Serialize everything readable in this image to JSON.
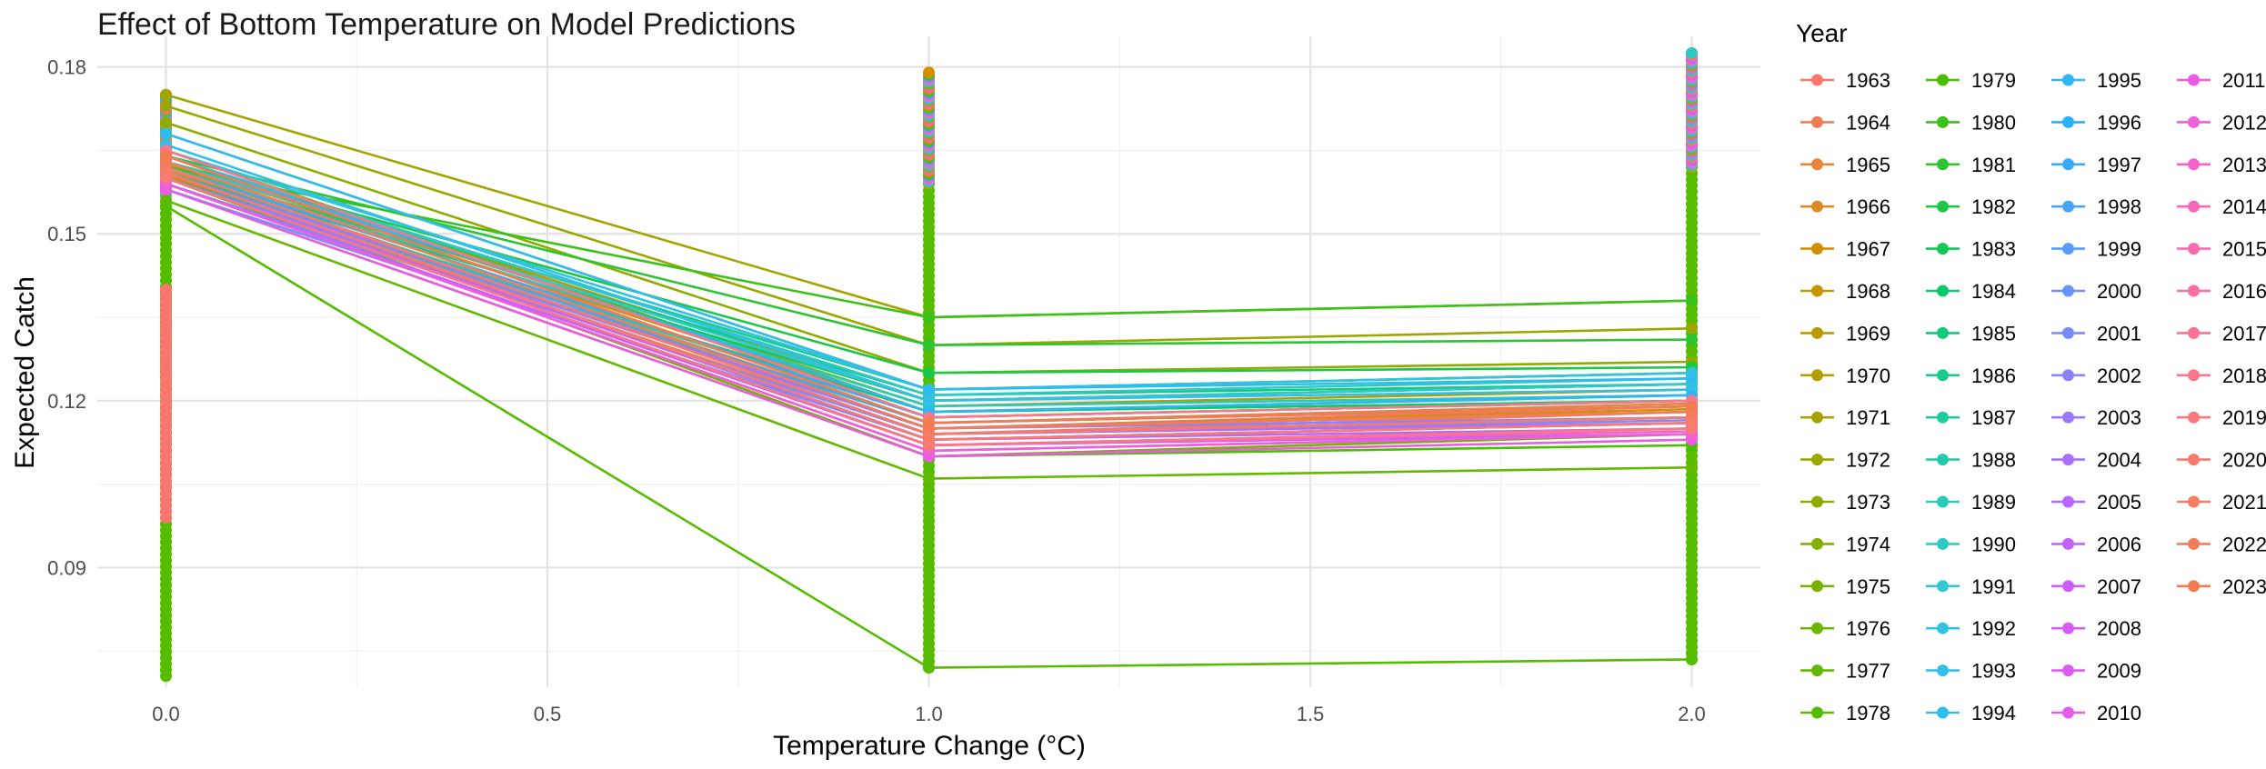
{
  "chart_data": {
    "type": "line",
    "title": "Effect of Bottom Temperature on Model Predictions",
    "xlabel": "Temperature Change (°C)",
    "ylabel": "Expected Catch",
    "x": [
      0,
      1,
      2
    ],
    "x_ticks": [
      "0.0",
      "0.5",
      "1.0",
      "1.5",
      "2.0"
    ],
    "y_ticks": [
      "0.09",
      "0.12",
      "0.15",
      "0.18"
    ],
    "xlim": [
      -0.09,
      2.09
    ],
    "ylim": [
      0.0685,
      0.1855
    ],
    "grid": true,
    "legend_title": "Year",
    "legend_position": "right",
    "series": [
      {
        "name": "1963",
        "color": "#F8766D",
        "values": [
          0.161,
          0.115,
          0.119
        ]
      },
      {
        "name": "1964",
        "color": "#F07D55",
        "values": [
          0.16,
          0.114,
          0.118
        ]
      },
      {
        "name": "1965",
        "color": "#E7843D",
        "values": [
          0.1615,
          0.116,
          0.1195
        ]
      },
      {
        "name": "1966",
        "color": "#DD8A24",
        "values": [
          0.162,
          0.117,
          0.12
        ]
      },
      {
        "name": "1967",
        "color": "#D29000",
        "values": [
          0.1605,
          0.115,
          0.1185
        ]
      },
      {
        "name": "1968",
        "color": "#C79500",
        "values": [
          0.1625,
          0.118,
          0.121
        ]
      },
      {
        "name": "1969",
        "color": "#BB9A00",
        "values": [
          0.164,
          0.12,
          0.123
        ]
      },
      {
        "name": "1970",
        "color": "#B09F00",
        "values": [
          0.163,
          0.119,
          0.122
        ]
      },
      {
        "name": "1971",
        "color": "#A5A300",
        "values": [
          0.175,
          0.135,
          0.138
        ]
      },
      {
        "name": "1972",
        "color": "#9AA700",
        "values": [
          0.173,
          0.13,
          0.133
        ]
      },
      {
        "name": "1973",
        "color": "#8FAB00",
        "values": [
          0.17,
          0.125,
          0.127
        ]
      },
      {
        "name": "1974",
        "color": "#84AF00",
        "values": [
          0.168,
          0.122,
          0.125
        ]
      },
      {
        "name": "1975",
        "color": "#79B200",
        "values": [
          0.165,
          0.118,
          0.12
        ]
      },
      {
        "name": "1976",
        "color": "#6DB600",
        "values": [
          0.16,
          0.11,
          0.114
        ]
      },
      {
        "name": "1977",
        "color": "#62B900",
        "values": [
          0.156,
          0.106,
          0.108
        ]
      },
      {
        "name": "1978",
        "color": "#55BC00",
        "values": [
          0.155,
          0.072,
          0.0735
        ]
      },
      {
        "name": "1979",
        "color": "#48BF00",
        "values": [
          0.158,
          0.11,
          0.112
        ]
      },
      {
        "name": "1980",
        "color": "#3AC21A",
        "values": [
          0.162,
          0.135,
          0.138
        ]
      },
      {
        "name": "1981",
        "color": "#2CC432",
        "values": [
          0.164,
          0.13,
          0.131
        ]
      },
      {
        "name": "1982",
        "color": "#1EC647",
        "values": [
          0.163,
          0.125,
          0.126
        ]
      },
      {
        "name": "1983",
        "color": "#12C85A",
        "values": [
          0.161,
          0.12,
          0.123
        ]
      },
      {
        "name": "1984",
        "color": "#0CC96C",
        "values": [
          0.16,
          0.118,
          0.12
        ]
      },
      {
        "name": "1985",
        "color": "#10CA7D",
        "values": [
          0.162,
          0.121,
          0.123
        ]
      },
      {
        "name": "1986",
        "color": "#17CB8D",
        "values": [
          0.163,
          0.122,
          0.125
        ]
      },
      {
        "name": "1987",
        "color": "#1ECB9C",
        "values": [
          0.16,
          0.116,
          0.119
        ]
      },
      {
        "name": "1988",
        "color": "#24CBAA",
        "values": [
          0.161,
          0.117,
          0.12
        ]
      },
      {
        "name": "1989",
        "color": "#29CAB8",
        "values": [
          0.162,
          0.119,
          0.121
        ]
      },
      {
        "name": "1990",
        "color": "#2DC9C5",
        "values": [
          0.164,
          0.121,
          0.124
        ]
      },
      {
        "name": "1991",
        "color": "#30C7D1",
        "values": [
          0.163,
          0.12,
          0.123
        ]
      },
      {
        "name": "1992",
        "color": "#32C4DC",
        "values": [
          0.165,
          0.122,
          0.125
        ]
      },
      {
        "name": "1993",
        "color": "#32C0E6",
        "values": [
          0.166,
          0.12,
          0.122
        ]
      },
      {
        "name": "1994",
        "color": "#30BCEF",
        "values": [
          0.168,
          0.122,
          0.124
        ]
      },
      {
        "name": "1995",
        "color": "#2DB7F6",
        "values": [
          0.164,
          0.118,
          0.121
        ]
      },
      {
        "name": "1996",
        "color": "#2AB1FC",
        "values": [
          0.162,
          0.117,
          0.12
        ]
      },
      {
        "name": "1997",
        "color": "#35AAFF",
        "values": [
          0.161,
          0.116,
          0.119
        ]
      },
      {
        "name": "1998",
        "color": "#48A3FF",
        "values": [
          0.16,
          0.115,
          0.118
        ]
      },
      {
        "name": "1999",
        "color": "#5A9BFF",
        "values": [
          0.159,
          0.114,
          0.117
        ]
      },
      {
        "name": "2000",
        "color": "#6B93FF",
        "values": [
          0.158,
          0.113,
          0.116
        ]
      },
      {
        "name": "2001",
        "color": "#7C8AFF",
        "values": [
          0.159,
          0.114,
          0.1165
        ]
      },
      {
        "name": "2002",
        "color": "#8C81FF",
        "values": [
          0.16,
          0.115,
          0.117
        ]
      },
      {
        "name": "2003",
        "color": "#9B78FF",
        "values": [
          0.161,
          0.115,
          0.118
        ]
      },
      {
        "name": "2004",
        "color": "#A970FF",
        "values": [
          0.162,
          0.114,
          0.116
        ]
      },
      {
        "name": "2005",
        "color": "#B668FF",
        "values": [
          0.16,
          0.113,
          0.115
        ]
      },
      {
        "name": "2006",
        "color": "#C262FF",
        "values": [
          0.159,
          0.112,
          0.114
        ]
      },
      {
        "name": "2007",
        "color": "#CD5DFF",
        "values": [
          0.162,
          0.114,
          0.117
        ]
      },
      {
        "name": "2008",
        "color": "#D65AFC",
        "values": [
          0.161,
          0.113,
          0.116
        ]
      },
      {
        "name": "2009",
        "color": "#DF59F5",
        "values": [
          0.16,
          0.112,
          0.115
        ]
      },
      {
        "name": "2010",
        "color": "#E65AEC",
        "values": [
          0.159,
          0.111,
          0.114
        ]
      },
      {
        "name": "2011",
        "color": "#EC5CE2",
        "values": [
          0.158,
          0.11,
          0.113
        ]
      },
      {
        "name": "2012",
        "color": "#F05FD7",
        "values": [
          0.159,
          0.111,
          0.114
        ]
      },
      {
        "name": "2013",
        "color": "#F463CB",
        "values": [
          0.16,
          0.112,
          0.1145
        ]
      },
      {
        "name": "2014",
        "color": "#F667BE",
        "values": [
          0.161,
          0.113,
          0.116
        ]
      },
      {
        "name": "2015",
        "color": "#F86BB1",
        "values": [
          0.162,
          0.114,
          0.117
        ]
      },
      {
        "name": "2016",
        "color": "#F96FA4",
        "values": [
          0.163,
          0.115,
          0.118
        ]
      },
      {
        "name": "2017",
        "color": "#FA7396",
        "values": [
          0.164,
          0.116,
          0.119
        ]
      },
      {
        "name": "2018",
        "color": "#FA7789",
        "values": [
          0.165,
          0.117,
          0.12
        ]
      },
      {
        "name": "2019",
        "color": "#F9797C",
        "values": [
          0.16,
          0.112,
          0.115
        ]
      },
      {
        "name": "2020",
        "color": "#F87B70",
        "values": [
          0.161,
          0.113,
          0.116
        ]
      },
      {
        "name": "2021",
        "color": "#F67C65",
        "values": [
          0.162,
          0.114,
          0.117
        ]
      },
      {
        "name": "2022",
        "color": "#F47C5B",
        "values": [
          0.163,
          0.115,
          0.118
        ]
      },
      {
        "name": "2023",
        "color": "#F27B52",
        "values": [
          0.164,
          0.116,
          0.119
        ]
      }
    ],
    "point_columns": [
      {
        "x": 0,
        "color": "#55BC00",
        "range": [
          0.0705,
          0.158
        ]
      },
      {
        "x": 0,
        "color": "#F8766D",
        "range": [
          0.099,
          0.14
        ]
      },
      {
        "x": 1,
        "color": "#55BC00",
        "range": [
          0.072,
          0.16
        ]
      },
      {
        "x": 2,
        "color": "#55BC00",
        "range": [
          0.0735,
          0.162
        ]
      }
    ],
    "point_clusters": [
      {
        "x": 0,
        "range": [
          0.157,
          0.175
        ],
        "colors": [
          "#A5A300",
          "#30BCEF",
          "#F86BB1",
          "#8C81FF",
          "#1ECB9C",
          "#D29000",
          "#F463CB"
        ]
      },
      {
        "x": 1,
        "range": [
          0.159,
          0.179
        ],
        "colors": [
          "#A5A300",
          "#32C0E6",
          "#F86BB1",
          "#8C81FF",
          "#2CC432",
          "#D29000",
          "#F463CB"
        ]
      },
      {
        "x": 2,
        "range": [
          0.162,
          0.1825
        ],
        "colors": [
          "#A5A300",
          "#30BCEF",
          "#F86BB1",
          "#CD5DFF",
          "#F8766D",
          "#2DC9C5",
          "#E65AEC"
        ]
      }
    ]
  }
}
